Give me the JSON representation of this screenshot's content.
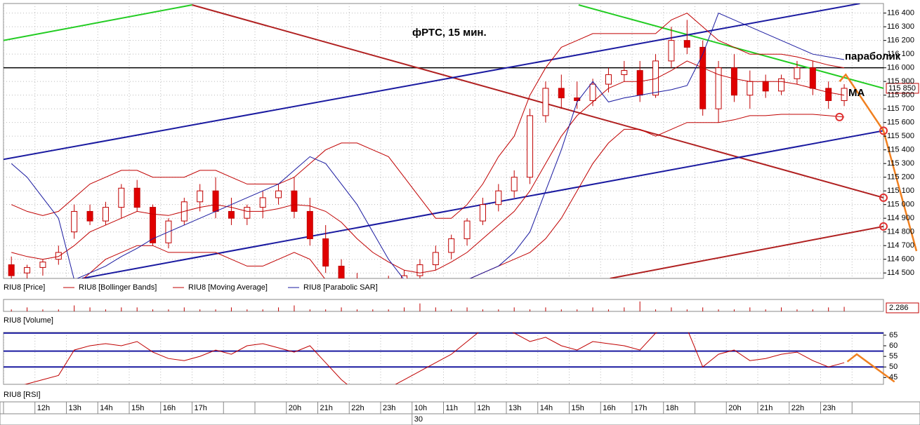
{
  "chart_data": [
    {
      "type": "candlestick",
      "title": "фРТС, 15 мин.",
      "annotations": [
        "параболик",
        "МА"
      ],
      "xlim": [
        -0.5,
        55.5
      ],
      "ylim": [
        114460,
        116470
      ],
      "grid": true,
      "yticks": [
        {
          "value": 114500,
          "label": "114 500"
        },
        {
          "value": 114600,
          "label": "114 600"
        },
        {
          "value": 114700,
          "label": "114 700"
        },
        {
          "value": 114800,
          "label": "114 800"
        },
        {
          "value": 114900,
          "label": "114 900"
        },
        {
          "value": 115000,
          "label": "115 000"
        },
        {
          "value": 115100,
          "label": "115 100"
        },
        {
          "value": 115200,
          "label": "115 200"
        },
        {
          "value": 115300,
          "label": "115 300"
        },
        {
          "value": 115400,
          "label": "115 400"
        },
        {
          "value": 115500,
          "label": "115 500"
        },
        {
          "value": 115600,
          "label": "115 600"
        },
        {
          "value": 115700,
          "label": "115 700"
        },
        {
          "value": 115800,
          "label": "115 800"
        },
        {
          "value": 115900,
          "label": "115 900"
        },
        {
          "value": 116000,
          "label": "116 000"
        },
        {
          "value": 116100,
          "label": "116 100"
        },
        {
          "value": 116200,
          "label": "116 200"
        },
        {
          "value": 116300,
          "label": "116 300"
        },
        {
          "value": 116400,
          "label": "116 400"
        }
      ],
      "categories": [
        null,
        null,
        "12h",
        null,
        "13h",
        null,
        "14h",
        null,
        "15h",
        null,
        "16h",
        null,
        "17h",
        null,
        null,
        null,
        null,
        null,
        "20h",
        null,
        "21h",
        null,
        "22h",
        null,
        "23h",
        null,
        "10h",
        null,
        "11h",
        null,
        "12h",
        null,
        "13h",
        null,
        "14h",
        null,
        "15h",
        null,
        "16h",
        null,
        "17h",
        null,
        "18h",
        null,
        null,
        null,
        "20h",
        null,
        "21h",
        null,
        "22h",
        null,
        "23h",
        null,
        null,
        null
      ],
      "date_labels": [
        {
          "index": 26,
          "label": "30"
        }
      ],
      "last_price": {
        "value": 115850,
        "label": "115 850"
      },
      "series": [
        {
          "name": "RIU8 [Price]",
          "color": "#c00000",
          "candles": [
            [
              114560,
              114620,
              114450,
              114480
            ],
            [
              114500,
              114560,
              114440,
              114540
            ],
            [
              114540,
              114600,
              114480,
              114580
            ],
            [
              114600,
              114700,
              114560,
              114650
            ],
            [
              114800,
              115000,
              114750,
              114950
            ],
            [
              114950,
              115000,
              114850,
              114880
            ],
            [
              114880,
              115020,
              114850,
              114980
            ],
            [
              114980,
              115150,
              114900,
              115120
            ],
            [
              115120,
              115180,
              114950,
              114980
            ],
            [
              114980,
              115000,
              114700,
              114720
            ],
            [
              114720,
              114900,
              114680,
              114880
            ],
            [
              114880,
              115050,
              114850,
              115020
            ],
            [
              115020,
              115150,
              114950,
              115100
            ],
            [
              115100,
              115200,
              114900,
              114950
            ],
            [
              114950,
              115050,
              114850,
              114900
            ],
            [
              114900,
              115000,
              114850,
              114980
            ],
            [
              114980,
              115100,
              114900,
              115050
            ],
            [
              115050,
              115150,
              115000,
              115100
            ],
            [
              115100,
              115200,
              114900,
              114950
            ],
            [
              114950,
              115050,
              114700,
              114750
            ],
            [
              114750,
              114850,
              114500,
              114550
            ],
            [
              114550,
              114600,
              114420,
              114450
            ],
            [
              114450,
              114500,
              114350,
              114380
            ],
            [
              114380,
              114450,
              114300,
              114420
            ],
            [
              114420,
              114480,
              114350,
              114450
            ],
            [
              114450,
              114520,
              114400,
              114480
            ],
            [
              114480,
              114600,
              114450,
              114560
            ],
            [
              114560,
              114700,
              114520,
              114650
            ],
            [
              114650,
              114780,
              114600,
              114750
            ],
            [
              114750,
              114900,
              114700,
              114880
            ],
            [
              114880,
              115050,
              114850,
              115000
            ],
            [
              115000,
              115150,
              114950,
              115100
            ],
            [
              115100,
              115250,
              115050,
              115200
            ],
            [
              115200,
              115700,
              115150,
              115650
            ],
            [
              115650,
              115900,
              115600,
              115850
            ],
            [
              115850,
              115950,
              115700,
              115780
            ],
            [
              115780,
              115900,
              115700,
              115760
            ],
            [
              115760,
              115920,
              115720,
              115880
            ],
            [
              115880,
              116000,
              115820,
              115950
            ],
            [
              115950,
              116050,
              115900,
              115980
            ],
            [
              115980,
              116050,
              115750,
              115800
            ],
            [
              115800,
              116100,
              115780,
              116050
            ],
            [
              116050,
              116300,
              116000,
              116200
            ],
            [
              116200,
              116350,
              116100,
              116150
            ],
            [
              116150,
              116200,
              115650,
              115700
            ],
            [
              115700,
              116050,
              115600,
              116000
            ],
            [
              116000,
              116100,
              115750,
              115800
            ],
            [
              115800,
              115980,
              115700,
              115900
            ],
            [
              115900,
              115950,
              115780,
              115830
            ],
            [
              115830,
              115950,
              115800,
              115920
            ],
            [
              115920,
              116050,
              115880,
              116000
            ],
            [
              116000,
              116050,
              115800,
              115850
            ],
            [
              115850,
              115900,
              115700,
              115760
            ],
            [
              115760,
              115880,
              115720,
              115850
            ],
            null,
            null
          ]
        },
        {
          "name": "RIU8 [Bollinger Bands]",
          "color": "#c00000",
          "upper": [
            115000,
            114950,
            114920,
            114950,
            115050,
            115150,
            115200,
            115250,
            115250,
            115200,
            115200,
            115200,
            115250,
            115250,
            115200,
            115150,
            115150,
            115150,
            115200,
            115300,
            115400,
            115450,
            115450,
            115400,
            115350,
            115200,
            115050,
            114900,
            114900,
            115000,
            115150,
            115350,
            115500,
            115800,
            116000,
            116150,
            116200,
            116250,
            116250,
            116250,
            116250,
            116250,
            116350,
            116400,
            116300,
            116200,
            116150,
            116100,
            116100,
            116100,
            116080,
            116050,
            116020,
            116000,
            null,
            null
          ],
          "lower": [
            114350,
            114300,
            114300,
            114350,
            114400,
            114500,
            114600,
            114650,
            114700,
            114700,
            114650,
            114650,
            114650,
            114650,
            114600,
            114550,
            114550,
            114600,
            114650,
            114600,
            114450,
            114300,
            114200,
            114150,
            114100,
            114150,
            114200,
            114250,
            114350,
            114450,
            114500,
            114550,
            114600,
            114650,
            114750,
            114900,
            115100,
            115300,
            115450,
            115550,
            115550,
            115500,
            115550,
            115600,
            115600,
            115600,
            115620,
            115650,
            115650,
            115660,
            115660,
            115660,
            115650,
            115640,
            null,
            null
          ]
        },
        {
          "name": "RIU8 [Moving Average]",
          "color": "#c00000",
          "values": [
            114650,
            114620,
            114600,
            114620,
            114700,
            114800,
            114850,
            114900,
            114950,
            114930,
            114920,
            114950,
            114980,
            115000,
            114980,
            114950,
            114950,
            114970,
            115000,
            114990,
            114950,
            114870,
            114750,
            114650,
            114580,
            114520,
            114500,
            114520,
            114580,
            114650,
            114750,
            114850,
            114950,
            115100,
            115300,
            115500,
            115650,
            115750,
            115850,
            115900,
            115900,
            115920,
            115980,
            116050,
            116000,
            115950,
            115920,
            115900,
            115900,
            115900,
            115880,
            115850,
            115820,
            115800,
            null,
            null
          ]
        },
        {
          "name": "RIU8 [Parabolic SAR]",
          "color": "#1a1aa0",
          "values": [
            115300,
            115200,
            115050,
            114900,
            114450,
            114500,
            114550,
            114620,
            114680,
            114750,
            114800,
            114850,
            114900,
            114950,
            115000,
            115050,
            115100,
            115150,
            115250,
            115350,
            115300,
            115150,
            115000,
            114800,
            114600,
            114450,
            114400,
            114400,
            114400,
            114450,
            114500,
            114550,
            114650,
            114800,
            115100,
            115400,
            115750,
            115900,
            115750,
            115780,
            115800,
            115820,
            115840,
            115870,
            116100,
            116400,
            116350,
            116300,
            116250,
            116200,
            116150,
            116100,
            116080,
            116060,
            null,
            null
          ]
        }
      ],
      "trendlines": [
        {
          "color": "#22cc22",
          "points": [
            [
              -0.5,
              116200
            ],
            [
              11.5,
              116460
            ]
          ]
        },
        {
          "color": "#b02020",
          "points": [
            [
              11.5,
              116460
            ],
            [
              55.5,
              115050
            ]
          ]
        },
        {
          "color": "#22cc22",
          "points": [
            [
              36.1,
              116460
            ],
            [
              55.5,
              115850
            ]
          ]
        },
        {
          "color": "#1a1aa0",
          "points": [
            [
              -0.5,
              115330
            ],
            [
              54,
              116470
            ]
          ]
        },
        {
          "color": "#1a1aa0",
          "points": [
            [
              4.5,
              114460
            ],
            [
              55.5,
              115540
            ]
          ]
        },
        {
          "color": "#b02020",
          "points": [
            [
              38.1,
              114460
            ],
            [
              55.5,
              114840
            ]
          ]
        }
      ],
      "hlines": [
        {
          "value": 116000,
          "color": "#000000"
        }
      ],
      "forecast": {
        "color": "#f08020",
        "points": [
          [
            52.7,
            115900
          ],
          [
            53.1,
            115950
          ],
          [
            55.5,
            115540
          ],
          [
            57.6,
            114660
          ]
        ]
      },
      "circles": {
        "color": "#e03030",
        "points": [
          [
            55.5,
            115540
          ],
          [
            55.5,
            115050
          ],
          [
            55.5,
            114840
          ],
          [
            52.7,
            115640
          ]
        ]
      }
    },
    {
      "type": "bar",
      "name": "RIU8 [Volume]",
      "color": "#c00000",
      "ylim": [
        0,
        6
      ],
      "last_value": 2.286,
      "values": [
        1,
        2,
        1,
        1,
        3,
        2,
        1,
        2,
        2,
        1,
        1,
        2,
        1,
        1,
        2,
        1,
        1,
        2,
        3,
        1,
        1,
        2,
        1,
        1,
        1,
        2,
        4,
        2,
        1,
        2,
        1,
        1,
        2,
        1,
        2,
        1,
        1,
        2,
        1,
        2,
        5,
        1,
        2,
        1,
        2,
        1,
        1,
        2,
        1,
        2,
        1,
        1,
        2,
        2.286,
        null,
        null
      ]
    },
    {
      "type": "line",
      "name": "RIU8 [RSI]",
      "color": "#c00000",
      "ylim": [
        41.8,
        66.3
      ],
      "yticks": [
        45,
        50,
        55,
        60,
        65
      ],
      "levels": {
        "color": "#1a1aa0",
        "values": [
          66,
          57.5,
          50
        ]
      },
      "values": [
        40,
        42,
        44,
        46,
        58,
        60,
        61,
        60,
        62,
        57,
        54,
        53,
        55,
        58,
        56,
        60,
        61,
        59,
        57,
        60,
        52,
        44,
        38,
        38,
        40,
        44,
        48,
        52,
        56,
        62,
        68,
        70,
        66,
        62,
        64,
        60,
        58,
        62,
        61,
        60,
        58,
        66,
        70,
        68,
        50,
        56,
        58,
        53,
        54,
        56,
        57,
        53,
        50,
        52,
        null,
        null
      ],
      "forecast": {
        "color": "#f08020",
        "points": [
          [
            53.2,
            52.5
          ],
          [
            53.8,
            56
          ],
          [
            56.2,
            43
          ]
        ]
      }
    }
  ]
}
